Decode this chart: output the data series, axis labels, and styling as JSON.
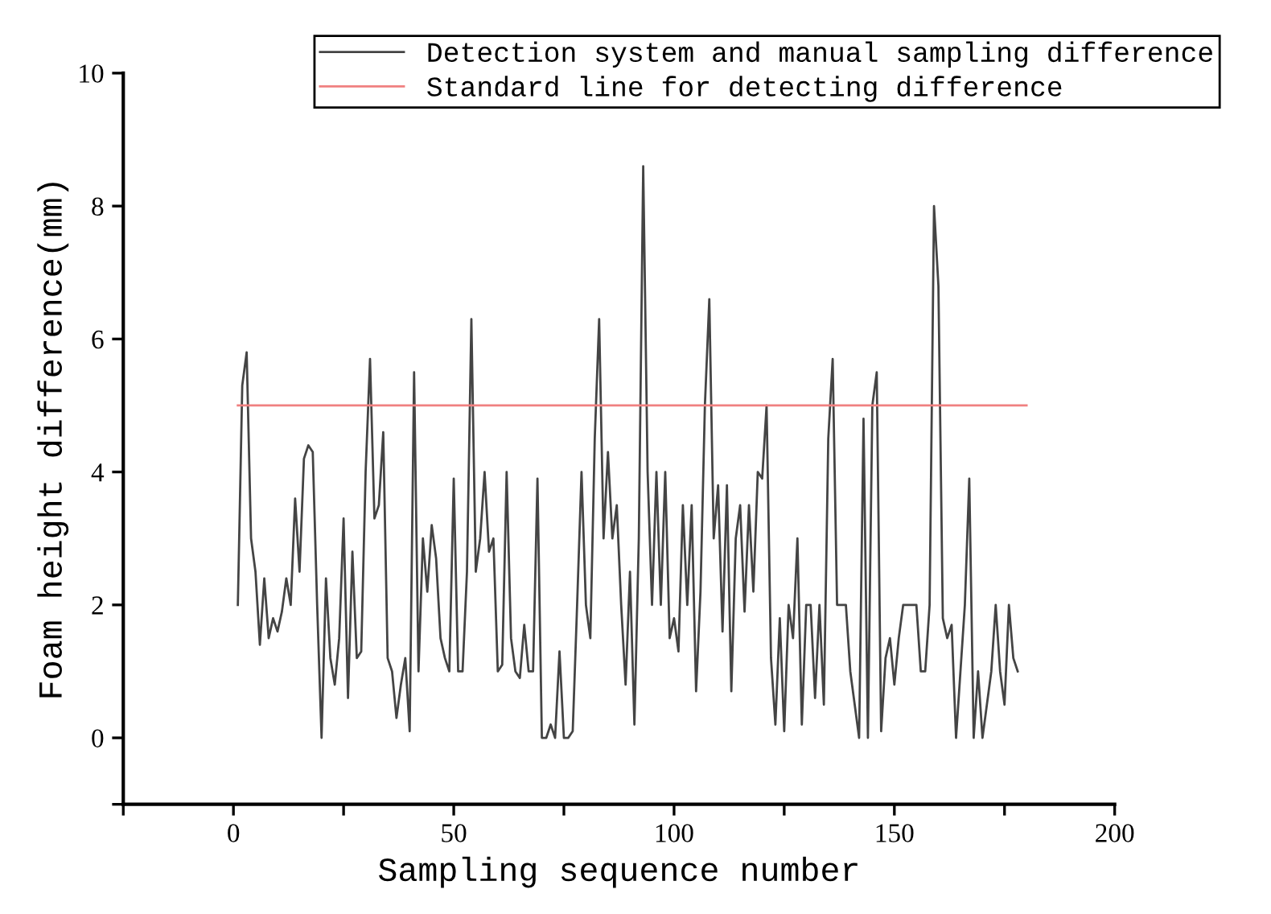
{
  "chart_data": {
    "type": "line",
    "xlabel": "Sampling sequence number",
    "ylabel": "Foam height difference(mm)",
    "xlim": [
      -25,
      200
    ],
    "ylim": [
      -1,
      10
    ],
    "xticks": [
      {
        "value": -25,
        "label": null
      },
      0,
      {
        "value": 25,
        "label": null
      },
      50,
      {
        "value": 75,
        "label": null
      },
      100,
      {
        "value": 125,
        "label": null
      },
      150,
      {
        "value": 175,
        "label": null
      },
      200
    ],
    "yticks": [
      {
        "value": -1,
        "label": null
      },
      0,
      2,
      4,
      6,
      8,
      10
    ],
    "grid": false,
    "legend": "top right",
    "marker": "none",
    "line_style": "solid",
    "series": [
      {
        "name": "Detection system and manual sampling difference",
        "color": "#444444",
        "x": [
          1,
          2,
          3,
          4,
          5,
          6,
          7,
          8,
          9,
          10,
          11,
          12,
          13,
          14,
          15,
          16,
          17,
          18,
          19,
          20,
          21,
          22,
          23,
          24,
          25,
          26,
          27,
          28,
          29,
          30,
          31,
          32,
          33,
          34,
          35,
          36,
          37,
          38,
          39,
          40,
          41,
          42,
          43,
          44,
          45,
          46,
          47,
          48,
          49,
          50,
          51,
          52,
          53,
          54,
          55,
          56,
          57,
          58,
          59,
          60,
          61,
          62,
          63,
          64,
          65,
          66,
          67,
          68,
          69,
          70,
          71,
          72,
          73,
          74,
          75,
          76,
          77,
          78,
          79,
          80,
          81,
          82,
          83,
          84,
          85,
          86,
          87,
          88,
          89,
          90,
          91,
          92,
          93,
          94,
          95,
          96,
          97,
          98,
          99,
          100,
          101,
          102,
          103,
          104,
          105,
          106,
          107,
          108,
          109,
          110,
          111,
          112,
          113,
          114,
          115,
          116,
          117,
          118,
          119,
          120,
          121,
          122,
          123,
          124,
          125,
          126,
          127,
          128,
          129,
          130,
          131,
          132,
          133,
          134,
          135,
          136,
          137,
          138,
          139,
          140,
          141,
          142,
          143,
          144,
          145,
          146,
          147,
          148,
          149,
          150,
          151,
          152,
          153,
          154,
          155,
          156,
          157,
          158,
          159,
          160,
          161,
          162,
          163,
          164,
          165,
          166,
          167,
          168,
          169,
          170,
          171,
          172,
          173,
          174,
          175,
          176,
          177,
          178
        ],
        "values": [
          2.0,
          5.3,
          5.8,
          3.0,
          2.5,
          1.4,
          2.4,
          1.5,
          1.8,
          1.6,
          1.9,
          2.4,
          2.0,
          3.6,
          2.5,
          4.2,
          4.4,
          4.3,
          2.0,
          0.0,
          2.4,
          1.2,
          0.8,
          1.5,
          3.3,
          0.6,
          2.8,
          1.2,
          1.3,
          4.0,
          5.7,
          3.3,
          3.5,
          4.6,
          1.2,
          1.0,
          0.3,
          0.8,
          1.2,
          0.1,
          5.5,
          1.0,
          3.0,
          2.2,
          3.2,
          2.7,
          1.5,
          1.2,
          1.0,
          3.9,
          1.0,
          1.0,
          2.5,
          6.3,
          2.5,
          3.0,
          4.0,
          2.8,
          3.0,
          1.0,
          1.1,
          4.0,
          1.5,
          1.0,
          0.9,
          1.7,
          1.0,
          1.0,
          3.9,
          0.0,
          0.0,
          0.2,
          0.0,
          1.3,
          0.0,
          0.0,
          0.1,
          2.0,
          4.0,
          2.0,
          1.5,
          4.5,
          6.3,
          3.0,
          4.3,
          3.0,
          3.5,
          2.0,
          0.8,
          2.5,
          0.2,
          3.0,
          8.6,
          4.0,
          2.0,
          4.0,
          2.0,
          4.0,
          1.5,
          1.8,
          1.3,
          3.5,
          2.0,
          3.5,
          0.7,
          2.2,
          5.0,
          6.6,
          3.0,
          3.8,
          1.6,
          3.8,
          0.7,
          3.0,
          3.5,
          1.9,
          3.5,
          2.2,
          4.0,
          3.9,
          5.0,
          1.2,
          0.2,
          1.8,
          0.1,
          2.0,
          1.5,
          3.0,
          0.2,
          2.0,
          2.0,
          0.6,
          2.0,
          0.5,
          4.5,
          5.7,
          2.0,
          2.0,
          2.0,
          1.0,
          0.5,
          0.0,
          4.8,
          0.0,
          5.0,
          5.5,
          0.1,
          1.2,
          1.5,
          0.8,
          1.5,
          2.0,
          2.0,
          2.0,
          2.0,
          1.0,
          1.0,
          2.0,
          8.0,
          6.8,
          1.8,
          1.5,
          1.7,
          0.0,
          1.0,
          2.0,
          3.9,
          0.0,
          1.0,
          0.0,
          0.5,
          1.0,
          2.0,
          1.0,
          0.5,
          2.0,
          1.2,
          1.0
        ]
      },
      {
        "name": "Standard line for detecting difference",
        "color": "#f08080",
        "x": [
          1,
          180
        ],
        "values": [
          5,
          5
        ]
      }
    ]
  }
}
